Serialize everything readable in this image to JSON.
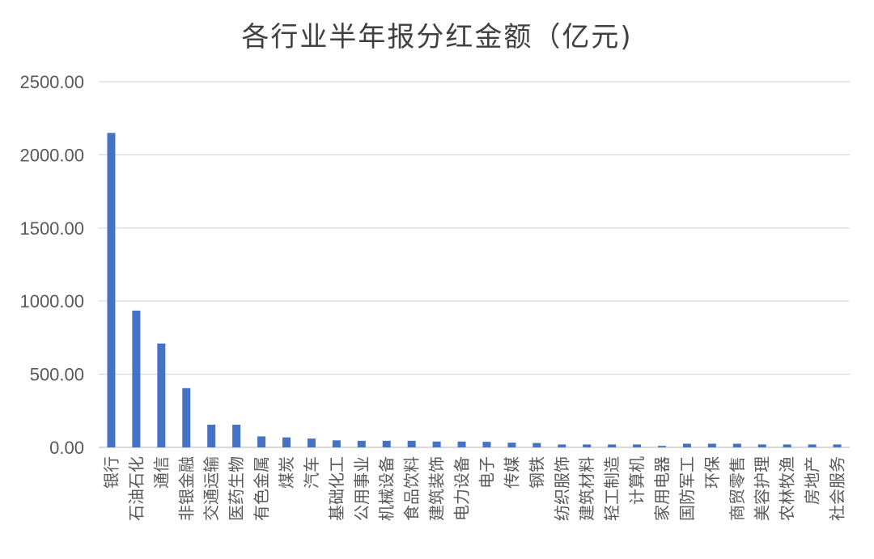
{
  "chart_data": {
    "type": "bar",
    "title": "各行业半年报分红金额（亿元)",
    "xlabel": "",
    "ylabel": "",
    "ylim": [
      0,
      2500
    ],
    "yticks": [
      0,
      500,
      1000,
      1500,
      2000,
      2500
    ],
    "ytick_labels": [
      "0.00",
      "500.00",
      "1000.00",
      "1500.00",
      "2000.00",
      "2500.00"
    ],
    "grid": true,
    "bar_color": "#4472c4",
    "categories": [
      "银行",
      "石油石化",
      "通信",
      "非银金融",
      "交通运输",
      "医药生物",
      "有色金属",
      "煤炭",
      "汽车",
      "基础化工",
      "公用事业",
      "机械设备",
      "食品饮料",
      "建筑装饰",
      "电力设备",
      "电子",
      "传媒",
      "钢铁",
      "纺织服饰",
      "建筑材料",
      "轻工制造",
      "计算机",
      "家用电器",
      "国防军工",
      "环保",
      "商贸零售",
      "美容护理",
      "农林牧渔",
      "房地产",
      "社会服务"
    ],
    "values": [
      2150,
      935,
      710,
      405,
      155,
      155,
      75,
      68,
      60,
      48,
      45,
      45,
      45,
      40,
      40,
      38,
      32,
      30,
      20,
      20,
      20,
      20,
      10,
      25,
      25,
      25,
      20,
      20,
      20,
      20
    ]
  }
}
